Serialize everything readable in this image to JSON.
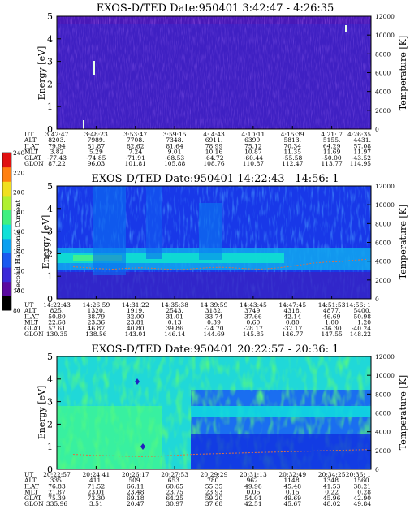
{
  "chart_data": {
    "type": "heatmap",
    "colorbar": {
      "label": "Second Harmonic Current",
      "ticks": [
        "240",
        "220",
        "200",
        "180",
        "160",
        "140",
        "120",
        "100",
        "80"
      ],
      "colors": [
        "#000000",
        "#5a0aa0",
        "#3a2ad8",
        "#1a5af0",
        "#0aa0f0",
        "#10e0d8",
        "#40f080",
        "#b0f030",
        "#f0e020",
        "#ff8010",
        "#e01010"
      ]
    },
    "panels": [
      {
        "title": "EXOS-D/TED   Date:950401  3:42:47 - 4:26:35",
        "ylabel": "Energy [eV]",
        "y2label": "Temperature [K]",
        "yticks": [
          "0",
          "1",
          "2",
          "3",
          "4",
          "5"
        ],
        "y2ticks": [
          "0",
          "2000",
          "4000",
          "6000",
          "8000",
          "10000",
          "12000"
        ],
        "ylim": [
          0,
          5
        ],
        "y2lim": [
          0,
          12000
        ],
        "rows": [
          {
            "label": "UT",
            "values": [
              "3:42:47",
              "3:48:23",
              "3:53:47",
              "3:59:15",
              "4: 4:43",
              "4:10:11",
              "4:15:39",
              "4:21: 7",
              "4:26:35"
            ]
          },
          {
            "label": "ALT",
            "values": [
              "8203.",
              "7989.",
              "7708.",
              "7348.",
              "6911.",
              "6399.",
              "5813.",
              "5155.",
              "4431."
            ]
          },
          {
            "label": "ILAT",
            "values": [
              "79.94",
              "81.87",
              "82.62",
              "81.64",
              "78.99",
              "75.12",
              "70.34",
              "64.29",
              "57.08"
            ]
          },
          {
            "label": "MLT",
            "values": [
              "3.82",
              "5.29",
              "7.24",
              "9.01",
              "10.16",
              "10.87",
              "11.35",
              "11.69",
              "11.97"
            ]
          },
          {
            "label": "GLAT",
            "values": [
              "-77.43",
              "-74.85",
              "-71.91",
              "-68.53",
              "-64.72",
              "-60.44",
              "-55.58",
              "-50.00",
              "-43.52"
            ]
          },
          {
            "label": "GLON",
            "values": [
              "87.22",
              "96.03",
              "101.81",
              "105.88",
              "108.76",
              "110.87",
              "112.47",
              "113.77",
              "114.95"
            ]
          }
        ],
        "temperature_trace": []
      },
      {
        "title": "EXOS-D/TED   Date:950401  14:22:43 - 14:56: 1",
        "ylabel": "Energy [eV]",
        "y2label": "Temperature [K]",
        "yticks": [
          "0",
          "1",
          "2",
          "3",
          "4",
          "5"
        ],
        "y2ticks": [
          "0",
          "2000",
          "4000",
          "6000",
          "8000",
          "10000",
          "12000"
        ],
        "ylim": [
          0,
          5
        ],
        "y2lim": [
          0,
          12000
        ],
        "rows": [
          {
            "label": "UT",
            "values": [
              "14:22:43",
              "14:26:59",
              "14:31:22",
              "14:35:38",
              "14:39:59",
              "14:43:45",
              "14:47:45",
              "14:51:53",
              "14:56: 1"
            ]
          },
          {
            "label": "ALT",
            "values": [
              "825.",
              "1320.",
              "1919.",
              "2543.",
              "3182.",
              "3749.",
              "4318.",
              "4877.",
              "5400."
            ]
          },
          {
            "label": "ILAT",
            "values": [
              "50.80",
              "38.79",
              "32.00",
              "31.01",
              "33.74",
              "37.66",
              "42.14",
              "46.69",
              "50.98"
            ]
          },
          {
            "label": "MLT",
            "values": [
              "22.68",
              "23.36",
              "23.81",
              "0.13",
              "0.39",
              "0.60",
              "0.80",
              "1.00",
              "1.20"
            ]
          },
          {
            "label": "GLAT",
            "values": [
              "57.61",
              "46.87",
              "40.80",
              "39.86",
              "-24.70",
              "-28.17",
              "-32.17",
              "-36.30",
              "-40.24"
            ]
          },
          {
            "label": "GLON",
            "values": [
              "130.35",
              "138.56",
              "143.01",
              "146.14",
              "144.69",
              "145.85",
              "146.77",
              "147.55",
              "148.22"
            ]
          }
        ],
        "temperature_trace": [
          3400,
          3300,
          3200,
          3150,
          3250,
          3300,
          3250,
          3150,
          3100,
          3200,
          3300,
          3350,
          3300,
          3200,
          3150,
          3250,
          3400,
          3600,
          3800,
          3900,
          3950,
          4100,
          4200
        ]
      },
      {
        "title": "EXOS-D/TED   Date:950401  20:22:57 - 20:36: 1",
        "ylabel": "Energy [eV]",
        "y2label": "Temperature [K]",
        "yticks": [
          "0",
          "1",
          "2",
          "3",
          "4",
          "5"
        ],
        "y2ticks": [
          "0",
          "2000",
          "4000",
          "6000",
          "8000",
          "10000",
          "12000"
        ],
        "ylim": [
          0,
          5
        ],
        "y2lim": [
          0,
          12000
        ],
        "rows": [
          {
            "label": "UT",
            "values": [
              "20:22:57",
              "20:24:41",
              "20:26:17",
              "20:27:53",
              "20:29:29",
              "20:31:13",
              "20:32:49",
              "20:34:25",
              "20:36: 1"
            ]
          },
          {
            "label": "ALT",
            "values": [
              "335.",
              "411.",
              "509.",
              "653.",
              "780.",
              "962.",
              "1148.",
              "1348.",
              "1560."
            ]
          },
          {
            "label": "ILAT",
            "values": [
              "76.83",
              "71.52",
              "66.11",
              "60.65",
              "55.35",
              "49.98",
              "45.48",
              "41.53",
              "38.21"
            ]
          },
          {
            "label": "MLT",
            "values": [
              "21.87",
              "23.01",
              "23.48",
              "23.75",
              "23.93",
              "0.06",
              "0.15",
              "0.22",
              "0.28"
            ]
          },
          {
            "label": "GLAT",
            "values": [
              "75.39",
              "73.30",
              "69.18",
              "64.25",
              "59.20",
              "54.01",
              "49.69",
              "45.96",
              "42.90"
            ]
          },
          {
            "label": "GLON",
            "values": [
              "335.96",
              "3.51",
              "20.47",
              "30.97",
              "37.68",
              "42.51",
              "45.67",
              "48.02",
              "49.84"
            ]
          }
        ],
        "temperature_trace": [
          1600,
          1500,
          1450,
          1400,
          1350,
          1400,
          1500,
          1600,
          1650,
          1700,
          1750,
          1800,
          1850,
          1900,
          1950,
          2000,
          2050,
          2100
        ]
      }
    ]
  }
}
